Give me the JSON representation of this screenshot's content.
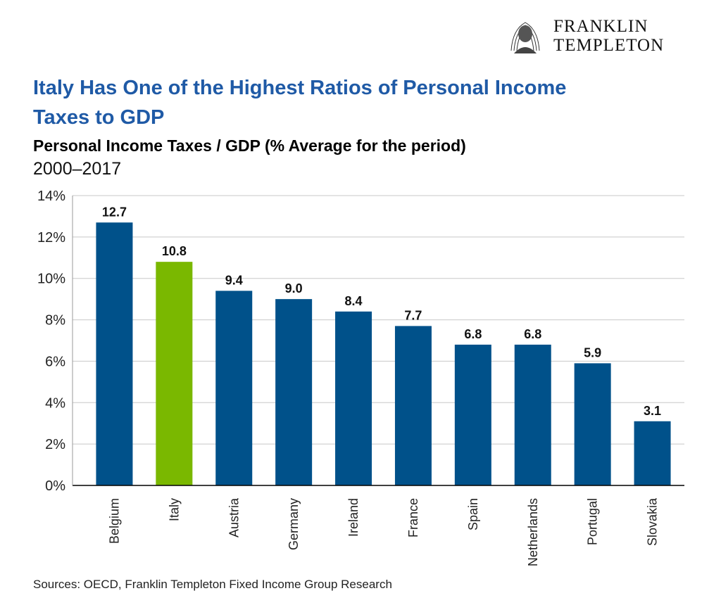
{
  "brand": {
    "line1": "FRANKLIN",
    "line2": "TEMPLETON",
    "logo_icon": "franklin-portrait-icon"
  },
  "header": {
    "title": "Italy Has One of the Highest Ratios of Personal Income Taxes to GDP",
    "subtitle": "Personal Income Taxes / GDP (% Average for the period)",
    "period": "2000–2017"
  },
  "chart_data": {
    "type": "bar",
    "categories": [
      "Belgium",
      "Italy",
      "Austria",
      "Germany",
      "Ireland",
      "France",
      "Spain",
      "Netherlands",
      "Portugal",
      "Slovakia"
    ],
    "values": [
      12.7,
      10.8,
      9.4,
      9.0,
      8.4,
      7.7,
      6.8,
      6.8,
      5.9,
      3.1
    ],
    "data_labels": [
      "12.7",
      "10.8",
      "9.4",
      "9.0",
      "8.4",
      "7.7",
      "6.8",
      "6.8",
      "5.9",
      "3.1"
    ],
    "yticks": [
      0,
      2,
      4,
      6,
      8,
      10,
      12,
      14
    ],
    "ytick_labels": [
      "0%",
      "2%",
      "4%",
      "6%",
      "8%",
      "10%",
      "12%",
      "14%"
    ],
    "ylim": [
      0,
      14
    ],
    "grid": true,
    "colors": {
      "default": "#00518a",
      "highlight": "#7ab800",
      "highlight_category": "Italy"
    }
  },
  "footer": {
    "source": "Sources: OECD, Franklin Templeton Fixed Income Group Research"
  }
}
